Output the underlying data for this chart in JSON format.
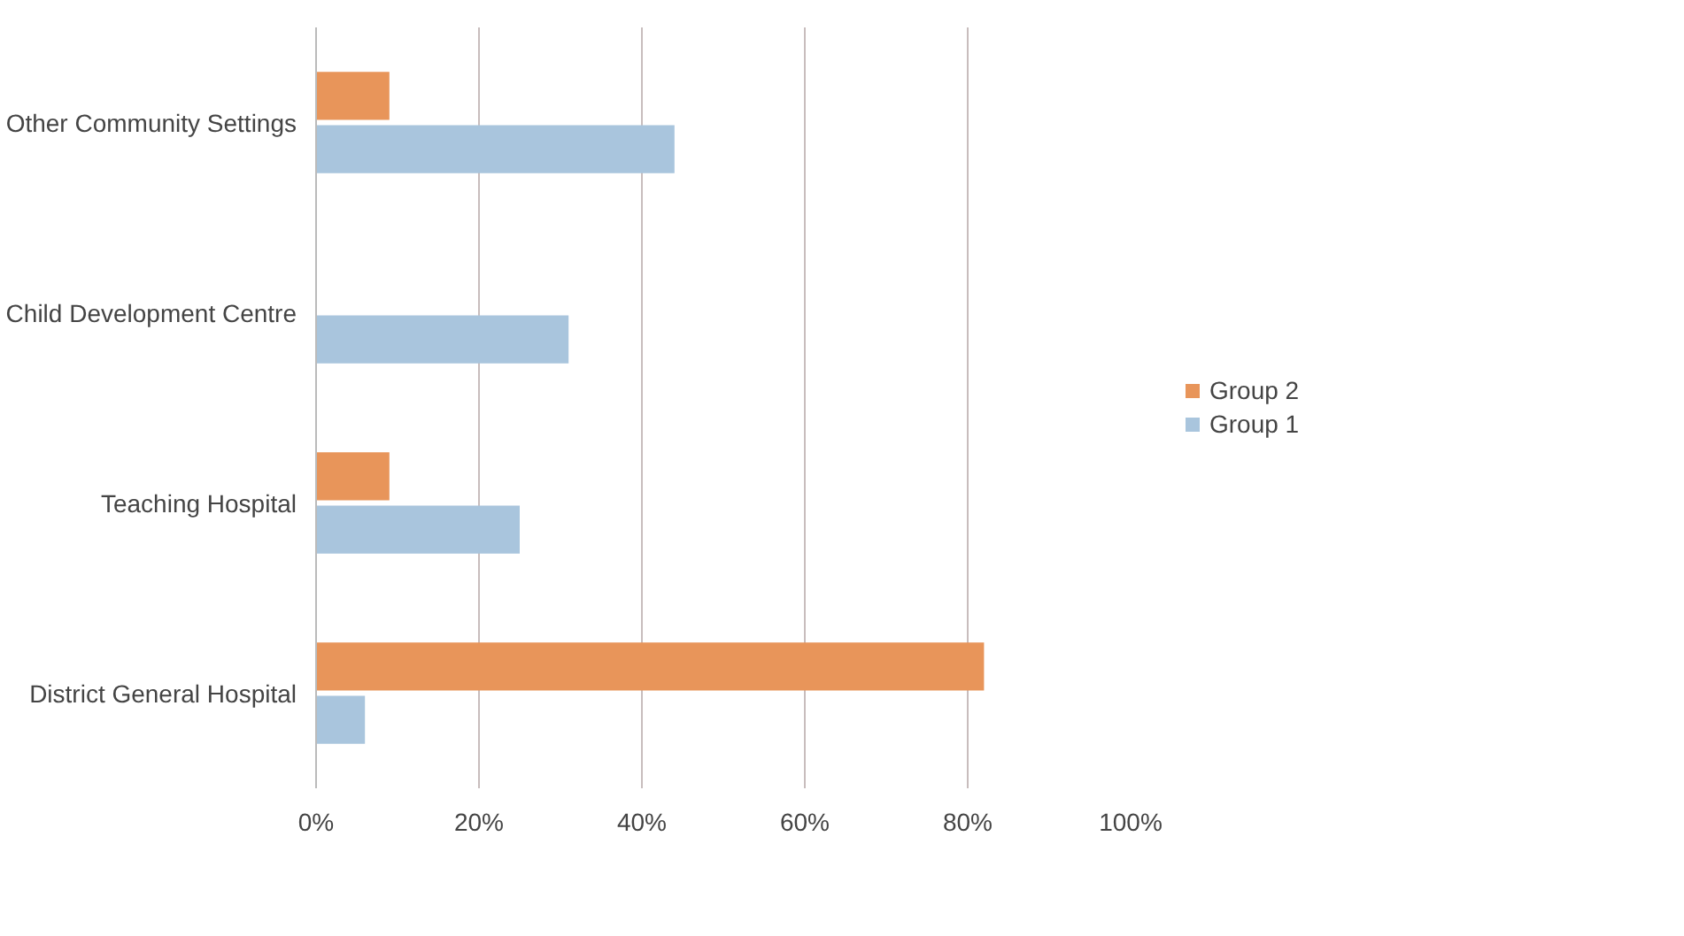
{
  "chart_data": {
    "type": "bar",
    "orientation": "horizontal",
    "categories": [
      "Other Community Settings",
      "Child Development Centre",
      "Teaching Hospital",
      "District General Hospital"
    ],
    "series": [
      {
        "name": "Group 2",
        "color": "#e8955a",
        "values": [
          9,
          0,
          9,
          82
        ]
      },
      {
        "name": "Group 1",
        "color": "#a9c5dd",
        "values": [
          44,
          31,
          25,
          6
        ]
      }
    ],
    "xlim": [
      0,
      100
    ],
    "xticks": [
      {
        "value": 0,
        "label": "0%"
      },
      {
        "value": 20,
        "label": "20%"
      },
      {
        "value": 40,
        "label": "40%"
      },
      {
        "value": 60,
        "label": "60%"
      },
      {
        "value": 80,
        "label": "80%"
      },
      {
        "value": 100,
        "label": "100%"
      }
    ],
    "grid": "x",
    "legend": "right"
  }
}
